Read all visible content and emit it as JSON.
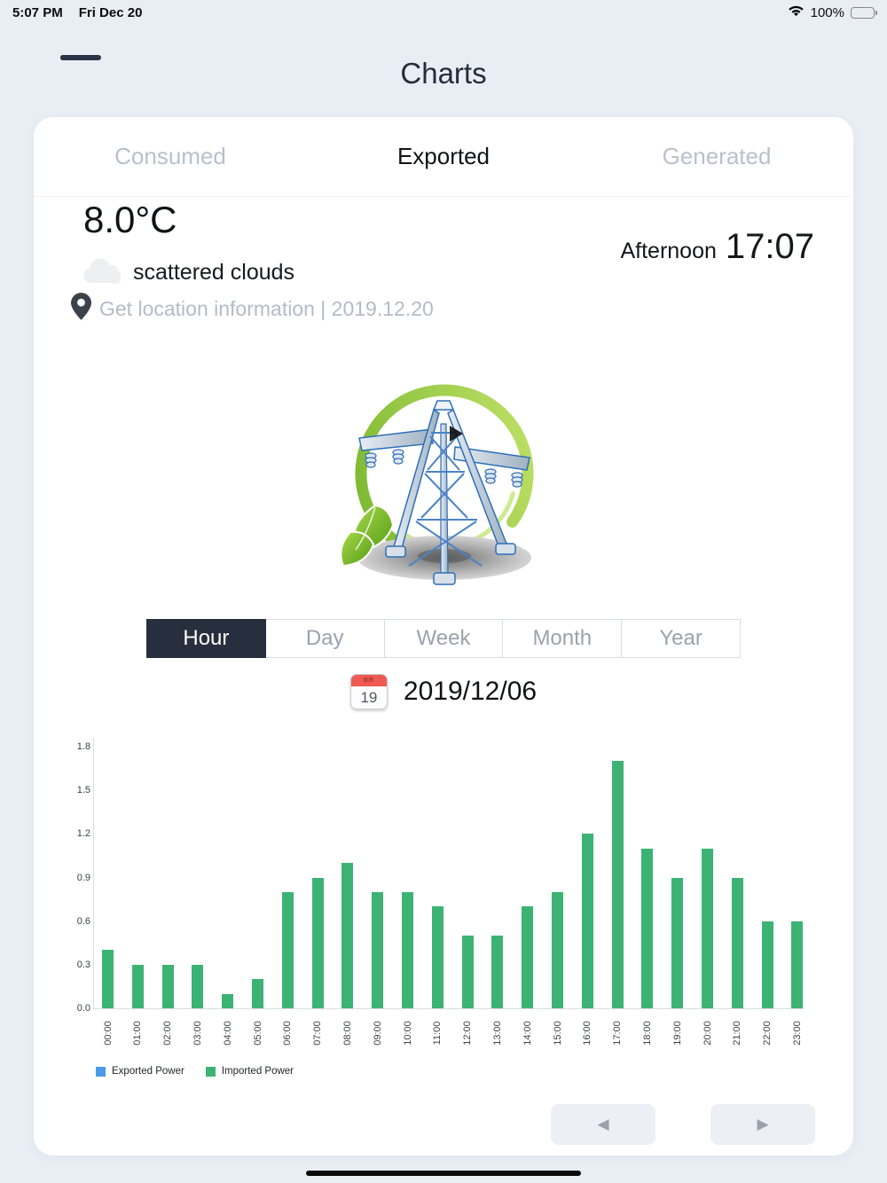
{
  "status_bar": {
    "time": "5:07 PM",
    "date": "Fri Dec 20",
    "battery_percent": "100%",
    "icons": [
      "wifi-icon",
      "battery-icon"
    ]
  },
  "header": {
    "title": "Charts",
    "menu_icon": "hamburger-menu-icon"
  },
  "tabs": {
    "active": "Exported",
    "items": [
      {
        "label": "Consumed"
      },
      {
        "label": "Exported"
      },
      {
        "label": "Generated"
      }
    ]
  },
  "weather": {
    "temperature": "8.0°C",
    "condition": "scattered clouds",
    "condition_icon": "cloud-icon",
    "location_icon": "location-pin-icon",
    "location_text": "Get location information | 2019.12.20",
    "period_label": "Afternoon",
    "time": "17:07",
    "center_graphic": "power-pylon-illustration"
  },
  "period_selector": {
    "selected": "Hour",
    "options": [
      "Hour",
      "Day",
      "Week",
      "Month",
      "Year"
    ]
  },
  "date_picker": {
    "icon": "calendar-icon",
    "calendar_day": "19",
    "value": "2019/12/06"
  },
  "chart_data": {
    "type": "bar",
    "title": "",
    "xlabel": "",
    "ylabel": "",
    "categories": [
      "00:00",
      "01:00",
      "02:00",
      "03:00",
      "04:00",
      "05:00",
      "06:00",
      "07:00",
      "08:00",
      "09:00",
      "10:00",
      "11:00",
      "12:00",
      "13:00",
      "14:00",
      "15:00",
      "16:00",
      "17:00",
      "18:00",
      "19:00",
      "20:00",
      "21:00",
      "22:00",
      "23:00"
    ],
    "series": [
      {
        "name": "Exported Power",
        "color": "#4a9ae8",
        "values": [
          0,
          0,
          0,
          0,
          0,
          0,
          0,
          0,
          0,
          0,
          0,
          0,
          0,
          0,
          0,
          0,
          0,
          0,
          0,
          0,
          0,
          0,
          0,
          0
        ]
      },
      {
        "name": "Imported Power",
        "color": "#3cb374",
        "values": [
          0.4,
          0.3,
          0.3,
          0.3,
          0.1,
          0.2,
          0.8,
          0.9,
          1.0,
          0.8,
          0.8,
          0.7,
          0.5,
          0.5,
          0.7,
          0.8,
          1.2,
          1.7,
          1.1,
          0.9,
          1.1,
          0.9,
          0.6,
          0.6
        ]
      }
    ],
    "ylim": [
      0,
      1.8
    ],
    "yticks": [
      "0.0",
      "0.3",
      "0.6",
      "0.9",
      "1.2",
      "1.5",
      "1.8"
    ],
    "grid": false,
    "legend_position": "bottom-left",
    "x_label_rotation": -90
  },
  "pagination": {
    "prev_icon": "left-arrow-icon",
    "prev_glyph": "◀",
    "next_icon": "right-arrow-icon",
    "next_glyph": "▶"
  },
  "colors": {
    "accent_dark": "#272f3e",
    "bar_green": "#3cb374",
    "legend_blue": "#4a9ae8",
    "page_background": "#e9eef5",
    "inactive_gray": "#b8c1cc"
  }
}
